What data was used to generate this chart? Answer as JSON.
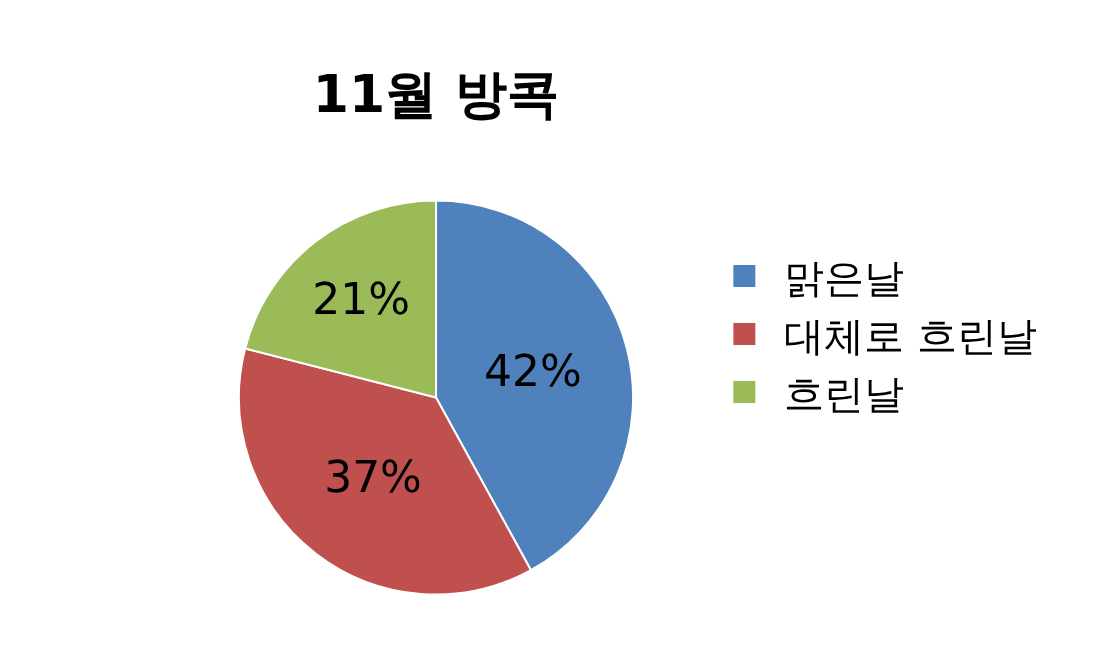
{
  "chart_data": {
    "type": "pie",
    "title": "11월 방콕",
    "categories": [
      "맑은날",
      "대체로 흐린날",
      "흐린날"
    ],
    "values": [
      42,
      37,
      21
    ],
    "colors": [
      "#4f81bd",
      "#c0504d",
      "#9bbb59"
    ],
    "value_labels": [
      "42%",
      "37%",
      "21%"
    ],
    "legend": "right"
  }
}
